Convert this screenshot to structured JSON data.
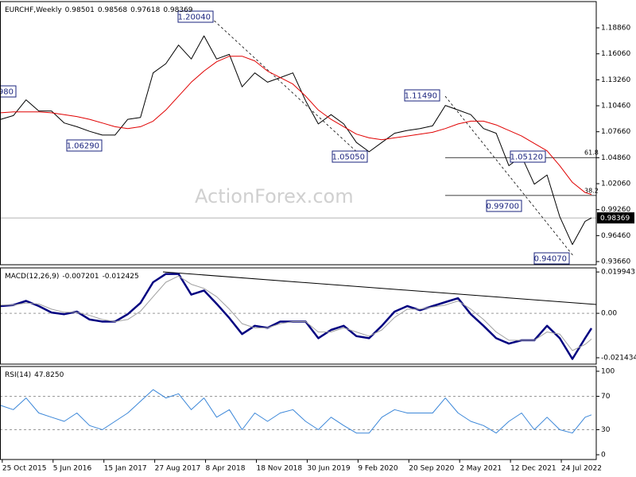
{
  "chart_data": [
    {
      "type": "line",
      "title": "EURCHF,Weekly",
      "ohlc": [
        0.98501,
        0.98568,
        0.97618,
        0.98369
      ],
      "watermark": "ActionForex.com",
      "x": [
        "2015-10-18",
        "2015-12-13",
        "2016-02-07",
        "2016-04-03",
        "2016-05-29",
        "2016-07-24",
        "2016-09-18",
        "2016-11-13",
        "2017-01-08",
        "2017-03-05",
        "2017-04-30",
        "2017-06-25",
        "2017-08-20",
        "2017-10-15",
        "2017-12-10",
        "2018-02-04",
        "2018-04-01",
        "2018-05-27",
        "2018-07-22",
        "2018-09-16",
        "2018-11-11",
        "2019-01-06",
        "2019-03-03",
        "2019-04-28",
        "2019-06-23",
        "2019-08-18",
        "2019-10-13",
        "2019-12-08",
        "2020-02-02",
        "2020-03-29",
        "2020-05-24",
        "2020-07-19",
        "2020-09-13",
        "2020-11-08",
        "2021-01-03",
        "2021-02-28",
        "2021-04-25",
        "2021-06-20",
        "2021-08-15",
        "2021-10-10",
        "2021-12-05",
        "2022-01-30",
        "2022-03-27",
        "2022-05-22",
        "2022-07-17",
        "2022-09-11",
        "2022-11-06",
        "2022-12-04"
      ],
      "xlim": [
        "2015-10-15",
        "2022-12-25"
      ],
      "series": [
        {
          "color": "#000000",
          "values": [
            1.09,
            1.094,
            1.111,
            1.099,
            1.099,
            1.086,
            1.082,
            1.077,
            1.073,
            1.073,
            1.09,
            1.092,
            1.14,
            1.15,
            1.17,
            1.155,
            1.18,
            1.155,
            1.16,
            1.125,
            1.14,
            1.13,
            1.135,
            1.14,
            1.11,
            1.085,
            1.095,
            1.085,
            1.065,
            1.055,
            1.065,
            1.075,
            1.078,
            1.08,
            1.083,
            1.105,
            1.1,
            1.095,
            1.08,
            1.075,
            1.04,
            1.05,
            1.02,
            1.03,
            0.985,
            0.955,
            0.98,
            0.98369
          ]
        },
        {
          "color": "#e00000",
          "values": [
            1.097,
            1.098,
            1.098,
            1.098,
            1.097,
            1.095,
            1.093,
            1.09,
            1.086,
            1.082,
            1.08,
            1.082,
            1.088,
            1.1,
            1.115,
            1.13,
            1.142,
            1.152,
            1.158,
            1.158,
            1.153,
            1.142,
            1.135,
            1.128,
            1.115,
            1.1,
            1.09,
            1.082,
            1.074,
            1.07,
            1.068,
            1.07,
            1.072,
            1.074,
            1.076,
            1.08,
            1.085,
            1.088,
            1.088,
            1.084,
            1.078,
            1.072,
            1.064,
            1.056,
            1.04,
            1.022,
            1.011,
            1.009
          ]
        }
      ],
      "ylim": [
        0.9332,
        1.2169
      ],
      "yticks": [
        {
          "value": 1.1886,
          "label": "1.18860"
        },
        {
          "value": 1.1606,
          "label": "1.16060"
        },
        {
          "value": 1.1326,
          "label": "1.13260"
        },
        {
          "value": 1.1046,
          "label": "1.10460"
        },
        {
          "value": 1.0766,
          "label": "1.07660"
        },
        {
          "value": 1.0486,
          "label": "1.04860"
        },
        {
          "value": 1.0206,
          "label": "1.02060"
        },
        {
          "value": 0.9926,
          "label": "0.99260"
        },
        {
          "value": 0.9646,
          "label": "0.96460"
        },
        {
          "value": 0.9366,
          "label": "0.93660"
        }
      ],
      "annotations": [
        "980",
        "1.20040",
        "1.06290",
        "1.05050",
        "1.11490",
        "1.05120",
        "0.99700",
        "0.94070"
      ],
      "fib_levels": [
        {
          "ratio": 61.8,
          "price": 1.0487
        },
        {
          "ratio": 38.2,
          "price": 1.0079
        }
      ]
    },
    {
      "type": "line",
      "title": "MACD(12,26,9)",
      "x": [
        "2015-10-18",
        "2015-12-13",
        "2016-02-07",
        "2016-04-03",
        "2016-05-29",
        "2016-07-24",
        "2016-09-18",
        "2016-11-13",
        "2017-01-08",
        "2017-03-05",
        "2017-04-30",
        "2017-06-25",
        "2017-08-20",
        "2017-10-15",
        "2017-12-10",
        "2018-02-04",
        "2018-04-01",
        "2018-05-27",
        "2018-07-22",
        "2018-09-16",
        "2018-11-11",
        "2019-01-06",
        "2019-03-03",
        "2019-04-28",
        "2019-06-23",
        "2019-08-18",
        "2019-10-13",
        "2019-12-08",
        "2020-02-02",
        "2020-03-29",
        "2020-05-24",
        "2020-07-19",
        "2020-09-13",
        "2020-11-08",
        "2021-01-03",
        "2021-02-28",
        "2021-04-25",
        "2021-06-20",
        "2021-08-15",
        "2021-10-10",
        "2021-12-05",
        "2022-01-30",
        "2022-03-27",
        "2022-05-22",
        "2022-07-17",
        "2022-09-11",
        "2022-11-06",
        "2022-12-04"
      ],
      "xlim": [
        "2015-10-15",
        "2022-12-25"
      ],
      "series": [
        {
          "color": "#000080",
          "values": [
            0.0035,
            0.004,
            0.006,
            0.0035,
            0.0004,
            -0.0004,
            0.0008,
            -0.003,
            -0.004,
            -0.004,
            -0.0004,
            0.005,
            0.015,
            0.019,
            0.019,
            0.009,
            0.011,
            0.0046,
            -0.0023,
            -0.01,
            -0.006,
            -0.007,
            -0.004,
            -0.004,
            -0.004,
            -0.012,
            -0.008,
            -0.006,
            -0.011,
            -0.012,
            -0.006,
            0.0008,
            0.0035,
            0.0015,
            0.0035,
            0.0054,
            0.0073,
            -0.0004,
            -0.006,
            -0.012,
            -0.0146,
            -0.013,
            -0.013,
            -0.006,
            -0.012,
            -0.022,
            -0.012,
            -0.007201
          ]
        },
        {
          "color": "#a0a0a0",
          "values": [
            0.004,
            0.004,
            0.005,
            0.0045,
            0.002,
            0.0005,
            0.0005,
            -0.001,
            -0.003,
            -0.004,
            -0.003,
            0.001,
            0.008,
            0.015,
            0.018,
            0.014,
            0.012,
            0.008,
            0.002,
            -0.005,
            -0.007,
            -0.007,
            -0.005,
            -0.004,
            -0.004,
            -0.009,
            -0.009,
            -0.007,
            -0.009,
            -0.011,
            -0.008,
            -0.002,
            0.002,
            0.002,
            0.003,
            0.004,
            0.006,
            0.002,
            -0.003,
            -0.009,
            -0.013,
            -0.013,
            -0.013,
            -0.009,
            -0.01,
            -0.018,
            -0.015,
            -0.012425
          ]
        }
      ],
      "ylim": [
        -0.0245,
        0.0219
      ],
      "yticks": [
        0.019943,
        {
          "value": 0,
          "label": "0.00"
        },
        -0.021434
      ],
      "levels": [
        0
      ]
    },
    {
      "type": "line",
      "title": "RSI(14)",
      "reading": "47.8250",
      "x": [
        "2015-10-18",
        "2015-12-13",
        "2016-02-07",
        "2016-04-03",
        "2016-05-29",
        "2016-07-24",
        "2016-09-18",
        "2016-11-13",
        "2017-01-08",
        "2017-03-05",
        "2017-04-30",
        "2017-06-25",
        "2017-08-20",
        "2017-10-15",
        "2017-12-10",
        "2018-02-04",
        "2018-04-01",
        "2018-05-27",
        "2018-07-22",
        "2018-09-16",
        "2018-11-11",
        "2019-01-06",
        "2019-03-03",
        "2019-04-28",
        "2019-06-23",
        "2019-08-18",
        "2019-10-13",
        "2019-12-08",
        "2020-02-02",
        "2020-03-29",
        "2020-05-24",
        "2020-07-19",
        "2020-09-13",
        "2020-11-08",
        "2021-01-03",
        "2021-02-28",
        "2021-04-25",
        "2021-06-20",
        "2021-08-15",
        "2021-10-10",
        "2021-12-05",
        "2022-01-30",
        "2022-03-27",
        "2022-05-22",
        "2022-07-17",
        "2022-09-11",
        "2022-11-06",
        "2022-12-04"
      ],
      "xlim": [
        "2015-10-15",
        "2022-12-25"
      ],
      "series": [
        {
          "color": "#3a86d8",
          "values": [
            59,
            54,
            68,
            50,
            45,
            40,
            50,
            35,
            30,
            40,
            50,
            64,
            78,
            68,
            73,
            54,
            68,
            45,
            54,
            30,
            50,
            40,
            50,
            54,
            40,
            30,
            45,
            35,
            26,
            26,
            45,
            54,
            50,
            50,
            50,
            68,
            50,
            40,
            35,
            26,
            40,
            50,
            30,
            45,
            30,
            26,
            45,
            47.825
          ]
        }
      ],
      "ylim": [
        -5.7,
        105.7
      ],
      "yticks": [
        100,
        70,
        30,
        0
      ],
      "levels": [
        70,
        30
      ],
      "xticks": [
        {
          "value": "2015-10-25",
          "label": "25 Oct 2015"
        },
        {
          "value": "2016-06-05",
          "label": "5 Jun 2016"
        },
        {
          "value": "2017-01-15",
          "label": "15 Jan 2017"
        },
        {
          "value": "2017-08-27",
          "label": "27 Aug 2017"
        },
        {
          "value": "2018-04-08",
          "label": "8 Apr 2018"
        },
        {
          "value": "2018-11-18",
          "label": "18 Nov 2018"
        },
        {
          "value": "2019-06-30",
          "label": "30 Jun 2019"
        },
        {
          "value": "2020-02-09",
          "label": "9 Feb 2020"
        },
        {
          "value": "2020-09-20",
          "label": "20 Sep 2020"
        },
        {
          "value": "2021-05-02",
          "label": "2 May 2021"
        },
        {
          "value": "2021-12-12",
          "label": "12 Dec 2021"
        },
        {
          "value": "2022-07-24",
          "label": "24 Jul 2022"
        }
      ]
    }
  ]
}
